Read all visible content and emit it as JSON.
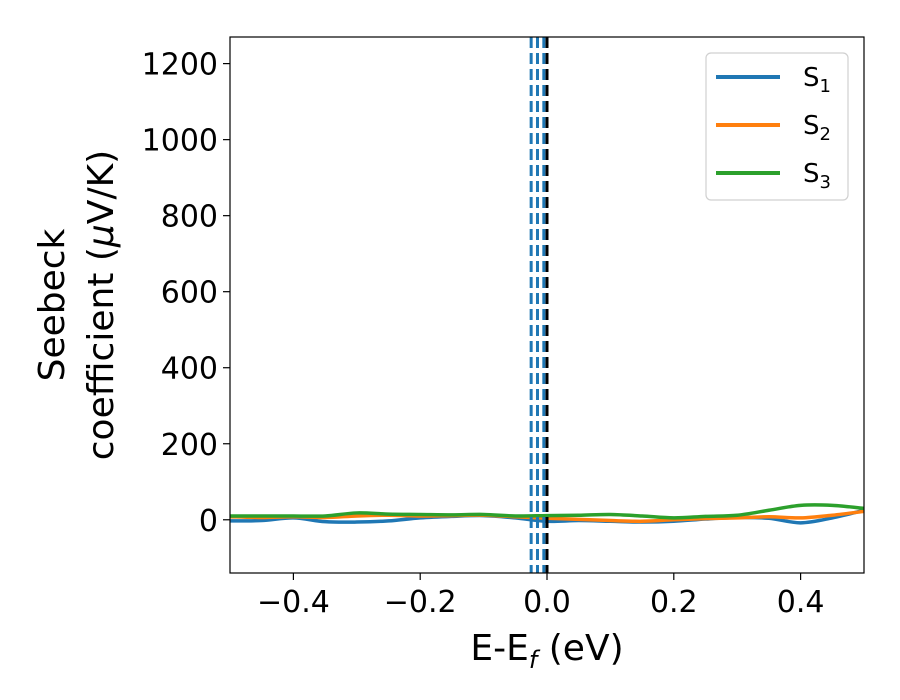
{
  "chart_data": {
    "type": "line",
    "xlabel": {
      "main": "E-E",
      "sub": "f",
      "suffix": " (eV)"
    },
    "ylabel": {
      "line1": "Seebeck",
      "line2_a": "coefficient  (",
      "line2_mu": "μ",
      "line2_b": "V/K)"
    },
    "xlim": [
      -0.5,
      0.5
    ],
    "ylim": [
      -140,
      1270
    ],
    "xticks": [
      -0.4,
      -0.2,
      0.0,
      0.2,
      0.4
    ],
    "xtick_labels": [
      "−0.4",
      "−0.2",
      "0.0",
      "0.2",
      "0.4"
    ],
    "yticks": [
      0,
      200,
      400,
      600,
      800,
      1000,
      1200
    ],
    "ytick_labels": [
      "0",
      "200",
      "400",
      "600",
      "800",
      "1000",
      "1200"
    ],
    "grid": false,
    "legend": "top-right",
    "vlines": [
      {
        "x": -0.025,
        "style": "dashed",
        "color": "#1f77b4"
      },
      {
        "x": -0.015,
        "style": "dashed",
        "color": "#1f77b4"
      },
      {
        "x": -0.005,
        "style": "dashed",
        "color": "#1f77b4"
      },
      {
        "x": 0.0,
        "style": "dashed",
        "color": "#000000"
      }
    ],
    "x": [
      -0.5,
      -0.45,
      -0.4,
      -0.35,
      -0.3,
      -0.25,
      -0.2,
      -0.15,
      -0.1,
      -0.05,
      0.0,
      0.05,
      0.1,
      0.15,
      0.2,
      0.25,
      0.3,
      0.35,
      0.4,
      0.45,
      0.5
    ],
    "series": [
      {
        "name_main": "S",
        "name_sub": "1",
        "color": "#1f77b4",
        "values": [
          -3,
          -2,
          5,
          -5,
          -6,
          -3,
          5,
          9,
          11,
          5,
          -4,
          -2,
          -4,
          -6,
          -4,
          2,
          6,
          4,
          -8,
          5,
          25
        ]
      },
      {
        "name_main": "S",
        "name_sub": "2",
        "color": "#ff7f0e",
        "values": [
          8,
          6,
          8,
          6,
          10,
          12,
          10,
          11,
          12,
          8,
          4,
          1,
          -2,
          -4,
          0,
          3,
          5,
          8,
          5,
          12,
          22
        ]
      },
      {
        "name_main": "S",
        "name_sub": "3",
        "color": "#2ca02c",
        "values": [
          10,
          10,
          10,
          10,
          18,
          15,
          14,
          13,
          14,
          10,
          11,
          12,
          14,
          10,
          5,
          9,
          12,
          25,
          38,
          38,
          30
        ]
      }
    ]
  }
}
